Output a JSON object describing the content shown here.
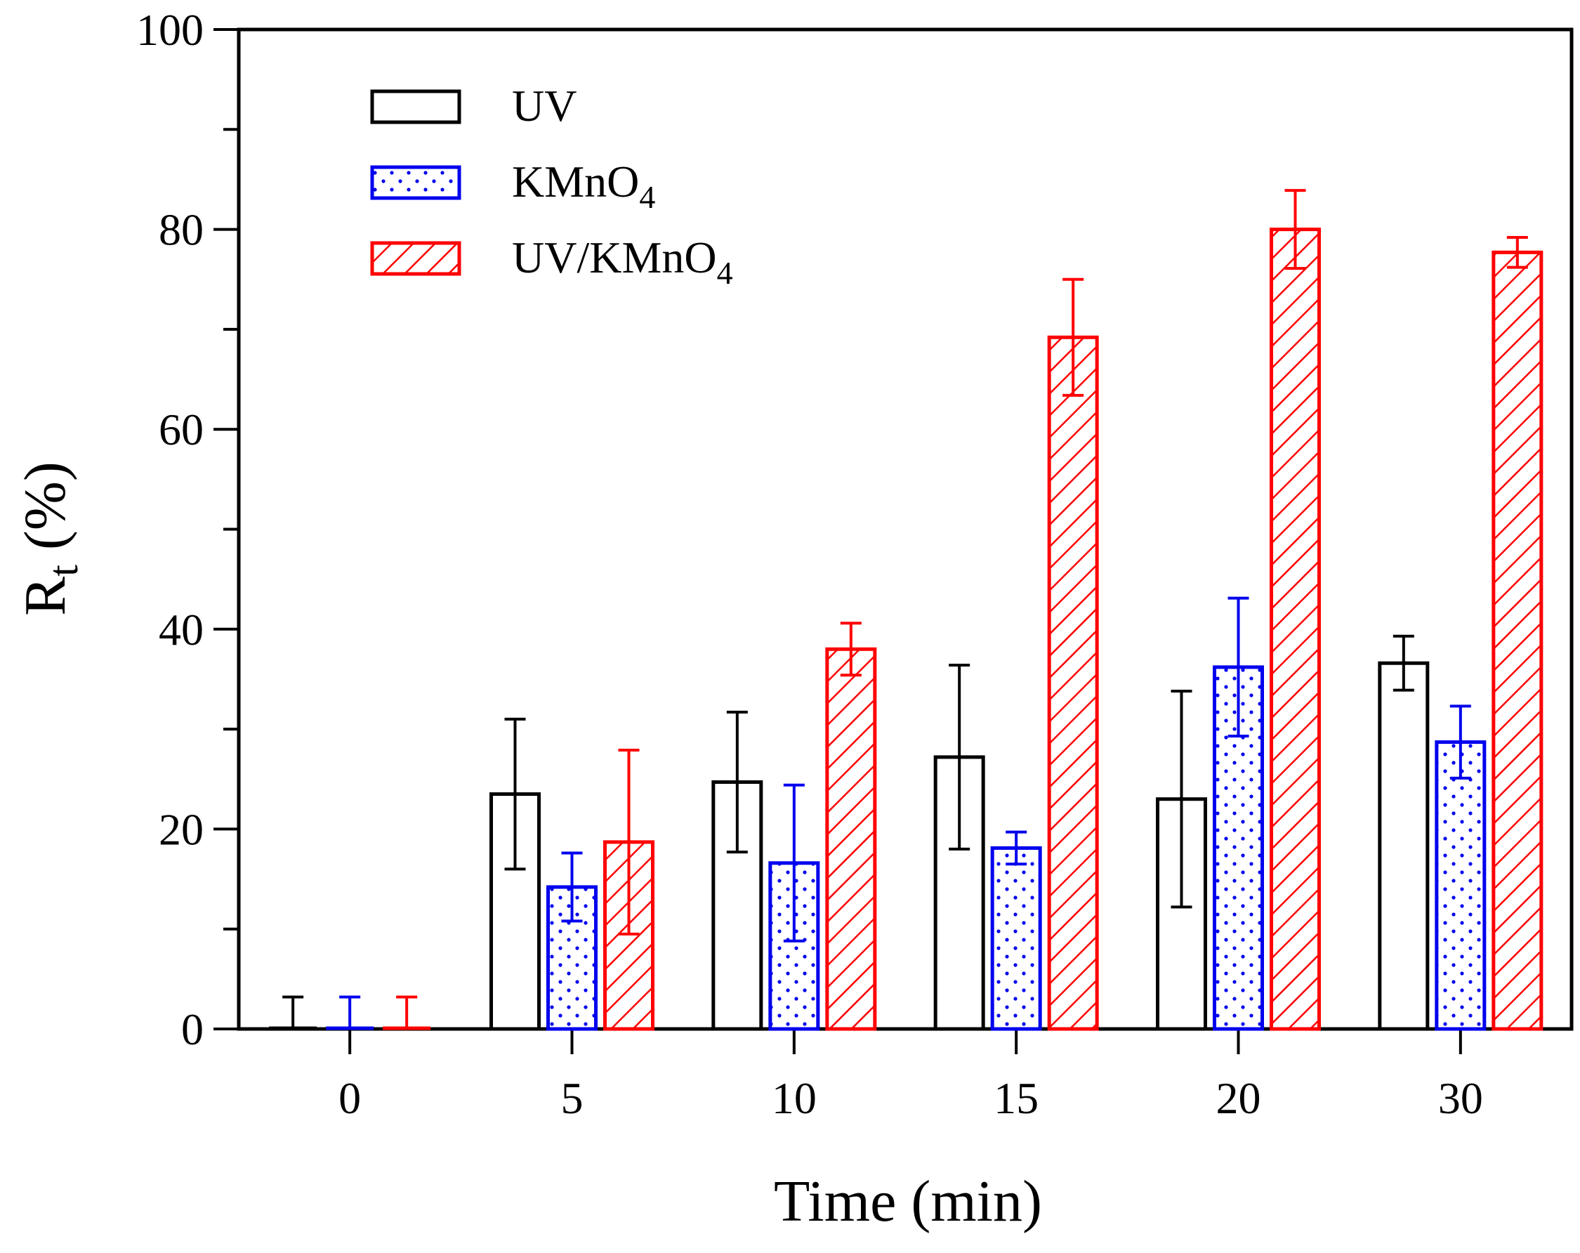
{
  "chart_data": {
    "type": "bar",
    "title": "",
    "xlabel": "Time (min)",
    "ylabel": "R",
    "ylabel_subscript": "t",
    "ylabel_suffix": " (%)",
    "ylim": [
      0,
      100
    ],
    "yticks": [
      "0",
      "20",
      "40",
      "60",
      "80",
      "100"
    ],
    "categories": [
      "0",
      "5",
      "10",
      "15",
      "20",
      "30"
    ],
    "legend_position": "top-left",
    "series": [
      {
        "name": "UV",
        "legend_main": "UV",
        "legend_sub": "",
        "color": "#000000",
        "pattern": "none",
        "values": [
          0,
          23.5,
          24.7,
          27.2,
          23.0,
          36.6
        ],
        "errors": [
          3.2,
          7.5,
          7.0,
          9.2,
          10.8,
          2.7
        ]
      },
      {
        "name": "KMnO4",
        "legend_main": "KMnO",
        "legend_sub": "4",
        "color": "#0000ee",
        "pattern": "dots",
        "values": [
          0,
          14.2,
          16.6,
          18.1,
          36.2,
          28.7
        ],
        "errors": [
          3.2,
          3.4,
          7.8,
          1.6,
          6.9,
          3.6
        ]
      },
      {
        "name": "UV/KMnO4",
        "legend_main": "UV/KMnO",
        "legend_sub": "4",
        "color": "#ff0000",
        "pattern": "hatch",
        "values": [
          0,
          18.7,
          38.0,
          69.2,
          80.0,
          77.7
        ],
        "errors": [
          3.2,
          9.2,
          2.6,
          5.8,
          3.9,
          1.5
        ]
      }
    ]
  }
}
